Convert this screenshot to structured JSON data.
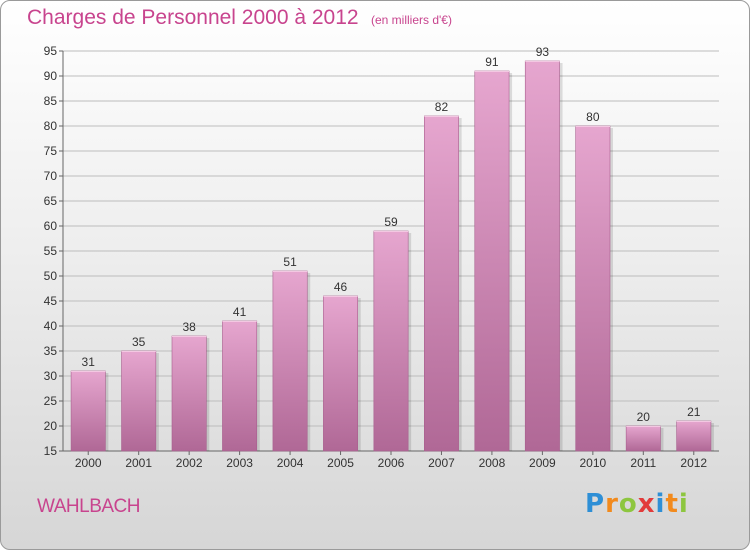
{
  "header": {
    "title": "Charges de Personnel 2000 à 2012",
    "subtitle": "(en milliers d'€)"
  },
  "footer": {
    "commune": "WAHLBACH",
    "logo_letters": [
      "P",
      "r",
      "o",
      "x",
      "i",
      "t",
      "i"
    ],
    "logo_colors": [
      "#2e8fd6",
      "#f28a1c",
      "#8dc63f",
      "#e23b3b",
      "#2e8fd6",
      "#f28a1c",
      "#8dc63f"
    ]
  },
  "colors": {
    "accent": "#c8448e",
    "bar_top": "#e6a6cf",
    "bar_bottom": "#b06896"
  },
  "chart_data": {
    "type": "bar",
    "categories": [
      "2000",
      "2001",
      "2002",
      "2003",
      "2004",
      "2005",
      "2006",
      "2007",
      "2008",
      "2009",
      "2010",
      "2011",
      "2012"
    ],
    "values": [
      31,
      35,
      38,
      41,
      51,
      46,
      59,
      82,
      91,
      93,
      80,
      20,
      21
    ],
    "ylim": [
      15,
      95
    ],
    "yticks": [
      15,
      20,
      25,
      30,
      35,
      40,
      45,
      50,
      55,
      60,
      65,
      70,
      75,
      80,
      85,
      90,
      95
    ],
    "grid": "horizontal"
  }
}
